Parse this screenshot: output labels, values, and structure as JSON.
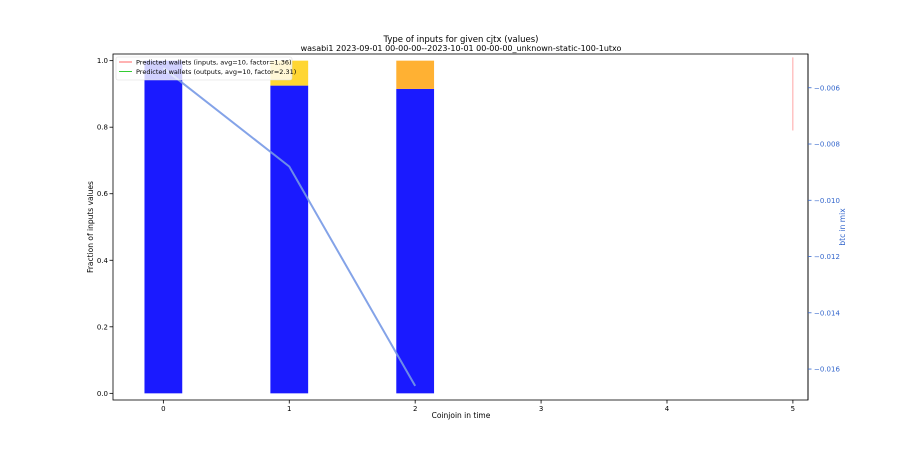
{
  "chart_data": {
    "type": "bar",
    "title": "Type of inputs for given cjtx (values)",
    "subtitle": "wasabi1 2023-09-01 00-00-00--2023-10-01 00-00-00_unknown-static-100-1utxo",
    "xlabel": "Coinjoin in time",
    "ylabel": "Fraction of inputs values",
    "ylabel_right": "btc in mix",
    "xlim": [
      -0.4,
      5.12
    ],
    "ylim": [
      -0.02,
      1.02
    ],
    "y2lim": [
      -0.0171,
      -0.0048
    ],
    "x_ticks": [
      0,
      1,
      2,
      3,
      4,
      5
    ],
    "y_ticks": [
      0.0,
      0.2,
      0.4,
      0.6,
      0.8,
      1.0
    ],
    "y_tick_labels": [
      "0.0",
      "0.2",
      "0.4",
      "0.6",
      "0.8",
      "1.0"
    ],
    "y2_ticks": [
      -0.006,
      -0.008,
      -0.01,
      -0.012,
      -0.014,
      -0.016
    ],
    "y2_tick_labels": [
      "−0.006",
      "−0.008",
      "−0.010",
      "−0.012",
      "−0.014",
      "−0.016"
    ],
    "bar_groups": [
      {
        "x": 0,
        "segments": [
          {
            "value": 1.0,
            "color": "#1a1aff"
          }
        ]
      },
      {
        "x": 1,
        "segments": [
          {
            "value": 0.925,
            "color": "#1a1aff"
          },
          {
            "value": 0.075,
            "color": "#ffd633"
          }
        ]
      },
      {
        "x": 2,
        "segments": [
          {
            "value": 0.915,
            "color": "#1a1aff"
          },
          {
            "value": 0.085,
            "color": "#ffb133"
          }
        ]
      }
    ],
    "btc_line": {
      "color": "#7799e6",
      "x": [
        0,
        1,
        2
      ],
      "y": [
        -0.0053,
        -0.0088,
        -0.0166
      ]
    },
    "vertical_markers": [
      {
        "x": 5.0,
        "y_from": 0.79,
        "y_to": 1.01,
        "color": "#ff8080"
      },
      {
        "x": 5.12,
        "y_from": -0.02,
        "y_to": 1.02,
        "color": "#000000"
      }
    ],
    "legend": {
      "position": "top-left",
      "entries": [
        {
          "label": "Predicted wallets (inputs, avg=10, factor=1.36)",
          "color": "#ff6666"
        },
        {
          "label": "Predicted wallets (outputs, avg=10, factor=2.31)",
          "color": "#33cc33"
        }
      ]
    },
    "grid": false
  }
}
